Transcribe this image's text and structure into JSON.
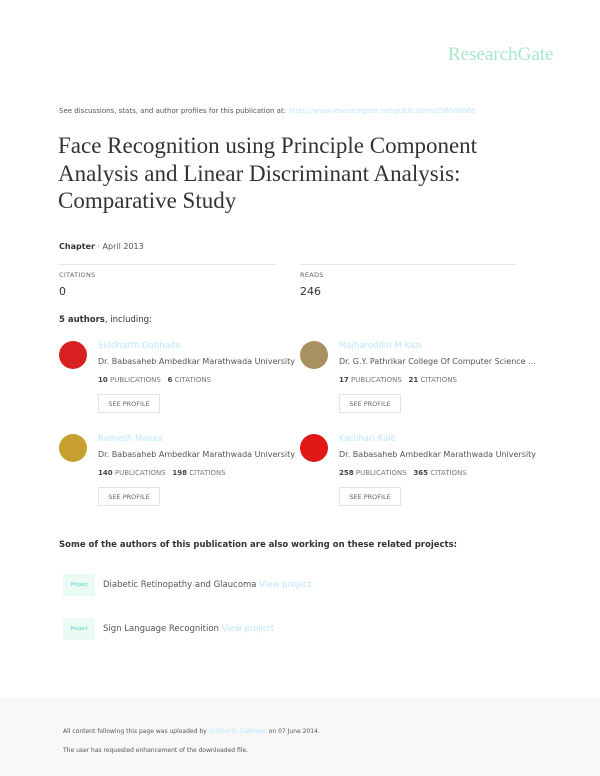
{
  "logo": "ResearchGate",
  "header": {
    "discussion_text": "See discussions, stats, and author profiles for this publication at: ",
    "url": "https://www.researchgate.net/publication/258069668"
  },
  "title": "Face Recognition using Principle Component Analysis and Linear Discriminant Analysis: Comparative Study",
  "meta": {
    "type": "Chapter",
    "date": " · April 2013"
  },
  "stats": {
    "citations_label": "CITATIONS",
    "citations": "0",
    "reads_label": "READS",
    "reads": "246"
  },
  "authors_heading": {
    "count": "5 authors",
    "suffix": ", including:"
  },
  "authors": [
    {
      "name": "Siddharth Dabhade",
      "affiliation": "Dr. Babasaheb Ambedkar Marathwada University",
      "publications": "10",
      "citations": "6",
      "avatar_color": "#d82020"
    },
    {
      "name": "Majharoddin M Kazi",
      "affiliation": "Dr. G.Y. Pathrikar College Of Computer Science ...",
      "publications": "17",
      "citations": "21",
      "avatar_color": "#a89060"
    },
    {
      "name": "Ramesh Manza",
      "affiliation": "Dr. Babasaheb Ambedkar Marathwada University",
      "publications": "140",
      "citations": "198",
      "avatar_color": "#c8a030"
    },
    {
      "name": "Karbhari Kale",
      "affiliation": "Dr. Babasaheb Ambedkar Marathwada University",
      "publications": "258",
      "citations": "365",
      "avatar_color": "#e01818"
    }
  ],
  "labels": {
    "publications": "PUBLICATIONS",
    "citations": "CITATIONS",
    "see_profile": "SEE PROFILE",
    "project_icon": "Project",
    "view_project": "View project"
  },
  "related_heading": "Some of the authors of this publication are also working on these related projects:",
  "projects": [
    {
      "title": "Diabetic Retinopathy and Glaucoma "
    },
    {
      "title": "Sign Language Recognition "
    }
  ],
  "footer": {
    "uploaded_prefix": "All content following this page was uploaded by ",
    "uploader": "Siddharth Dabhade",
    "uploaded_suffix": " on 07 June 2014.",
    "note": "The user has requested enhancement of the downloaded file."
  }
}
